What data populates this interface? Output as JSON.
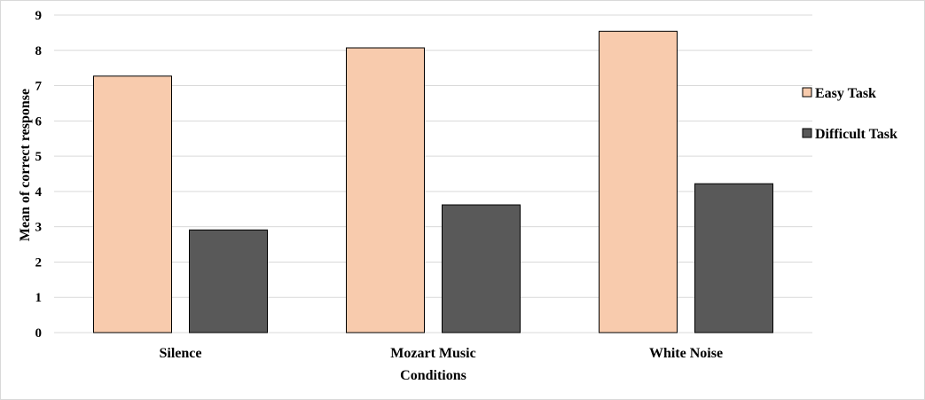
{
  "chart_data": {
    "type": "bar",
    "categories": [
      "Silence",
      "Mozart Music",
      "White Noise"
    ],
    "series": [
      {
        "name": "Easy Task",
        "values": [
          7.27,
          8.07,
          8.54
        ],
        "color": "#f8cbad"
      },
      {
        "name": "Difficult Task",
        "values": [
          2.91,
          3.62,
          4.22
        ],
        "color": "#595959"
      }
    ],
    "xlabel": "Conditions",
    "ylabel": "Mean of correct response",
    "ylim": [
      0,
      9
    ],
    "yticks": [
      0,
      1,
      2,
      3,
      4,
      5,
      6,
      7,
      8,
      9
    ],
    "grid": true,
    "legend_position": "right"
  },
  "colors": {
    "gridline": "#d9d9d9",
    "bar_outline": "#000000"
  }
}
